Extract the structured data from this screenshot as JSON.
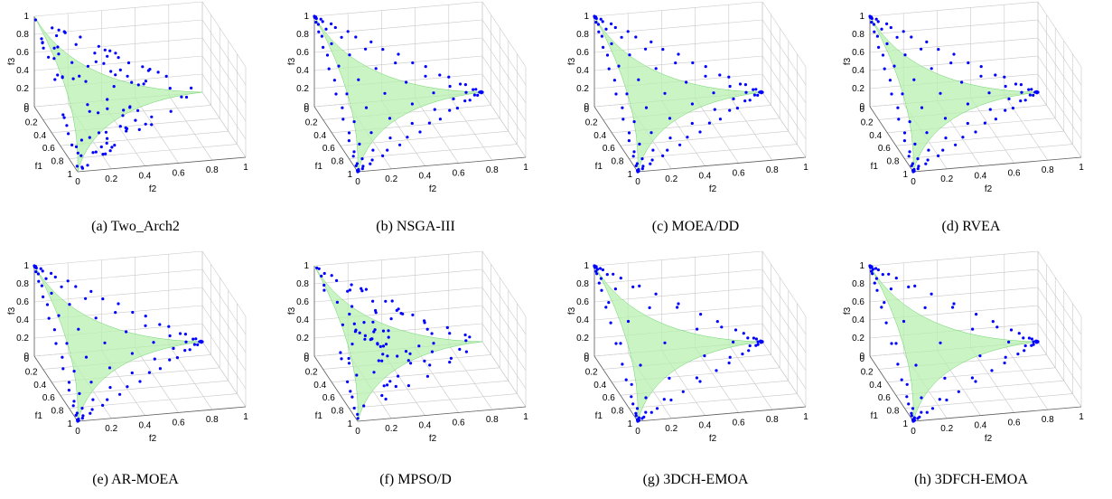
{
  "figure": {
    "panels": [
      {
        "caption": "(a)  Two_Arch2"
      },
      {
        "caption": "(b)  NSGA-III"
      },
      {
        "caption": "(c)  MOEA/DD"
      },
      {
        "caption": "(d)  RVEA"
      },
      {
        "caption": "(e)  AR-MOEA"
      },
      {
        "caption": "(f)  MPSO/D"
      },
      {
        "caption": "(g)  3DCH-EMOA"
      },
      {
        "caption": "(h)  3DFCH-EMOA"
      }
    ],
    "colors": {
      "points": "#0000ff",
      "front": "#b8f0b0",
      "front_edge": "#6ad36a",
      "grid": "#c8c8c8",
      "axis": "#606060"
    }
  },
  "chart_data": [
    {
      "type": "scatter",
      "title": "(a)  Two_Arch2",
      "xlabel": "f1",
      "ylabel": "f2",
      "zlabel": "f3",
      "xlim": [
        0,
        1
      ],
      "ylim": [
        0,
        1
      ],
      "zlim": [
        0,
        1
      ],
      "ticks": {
        "x": [
          "0",
          "0.2",
          "0.4",
          "0.6",
          "0.8",
          "1"
        ],
        "y": [
          "0",
          "0.2",
          "0.4",
          "0.6",
          "0.8",
          "1"
        ],
        "z": [
          "0",
          "0.2",
          "0.4",
          "0.6",
          "0.8",
          "1"
        ]
      },
      "grid": true,
      "points_count": 100,
      "front": "concave (inverted simplex)",
      "distribution": "random-like, denser toward corners"
    },
    {
      "type": "scatter",
      "title": "(b)  NSGA-III",
      "xlabel": "f1",
      "ylabel": "f2",
      "zlabel": "f3",
      "xlim": [
        0,
        1
      ],
      "ylim": [
        0,
        1
      ],
      "zlim": [
        0,
        1
      ],
      "ticks": {
        "x": [
          "0",
          "0.2",
          "0.4",
          "0.6",
          "0.8",
          "1"
        ],
        "y": [
          "0",
          "0.2",
          "0.4",
          "0.6",
          "0.8",
          "1"
        ],
        "z": [
          "0",
          "0.2",
          "0.4",
          "0.6",
          "0.8",
          "1"
        ]
      },
      "grid": true,
      "points_count": 91,
      "front": "concave (inverted simplex)",
      "distribution": "uniform lattice"
    },
    {
      "type": "scatter",
      "title": "(c)  MOEA/DD",
      "xlabel": "f1",
      "ylabel": "f2",
      "zlabel": "f3",
      "xlim": [
        0,
        1
      ],
      "ylim": [
        0,
        1
      ],
      "zlim": [
        0,
        1
      ],
      "ticks": {
        "x": [
          "0",
          "0.2",
          "0.4",
          "0.6",
          "0.8",
          "1"
        ],
        "y": [
          "0",
          "0.2",
          "0.4",
          "0.6",
          "0.8",
          "1"
        ],
        "z": [
          "0",
          "0.2",
          "0.4",
          "0.6",
          "0.8",
          "1"
        ]
      },
      "grid": true,
      "points_count": 91,
      "front": "concave (inverted simplex)",
      "distribution": "uniform lattice"
    },
    {
      "type": "scatter",
      "title": "(d)  RVEA",
      "xlabel": "f1",
      "ylabel": "f2",
      "zlabel": "f3",
      "xlim": [
        0,
        1
      ],
      "ylim": [
        0,
        1
      ],
      "zlim": [
        0,
        1
      ],
      "ticks": {
        "x": [
          "0",
          "0.2",
          "0.4",
          "0.6",
          "0.8",
          "1"
        ],
        "y": [
          "0",
          "0.2",
          "0.4",
          "0.6",
          "0.8",
          "1"
        ],
        "z": [
          "0",
          "0.2",
          "0.4",
          "0.6",
          "0.8",
          "1"
        ]
      },
      "grid": true,
      "points_count": 91,
      "front": "concave (inverted simplex)",
      "distribution": "uniform lattice"
    },
    {
      "type": "scatter",
      "title": "(e)  AR-MOEA",
      "xlabel": "f1",
      "ylabel": "f2",
      "zlabel": "f3",
      "xlim": [
        0,
        1
      ],
      "ylim": [
        0,
        1
      ],
      "zlim": [
        0,
        1
      ],
      "ticks": {
        "x": [
          "0",
          "0.2",
          "0.4",
          "0.6",
          "0.8",
          "1"
        ],
        "y": [
          "0",
          "0.2",
          "0.4",
          "0.6",
          "0.8",
          "1"
        ],
        "z": [
          "0",
          "0.2",
          "0.4",
          "0.6",
          "0.8",
          "1"
        ]
      },
      "grid": true,
      "points_count": 91,
      "front": "concave (inverted simplex)",
      "distribution": "uniform lattice"
    },
    {
      "type": "scatter",
      "title": "(f)  MPSO/D",
      "xlabel": "f1",
      "ylabel": "f2",
      "zlabel": "f3",
      "xlim": [
        0,
        1
      ],
      "ylim": [
        0,
        1
      ],
      "zlim": [
        0,
        1
      ],
      "ticks": {
        "x": [
          "0",
          "0.2",
          "0.4",
          "0.6",
          "0.8",
          "1"
        ],
        "y": [
          "0",
          "0.2",
          "0.4",
          "0.6",
          "0.8",
          "1"
        ],
        "z": [
          "0",
          "0.2",
          "0.4",
          "0.6",
          "0.8",
          "1"
        ]
      },
      "grid": true,
      "points_count": 100,
      "front": "concave (inverted simplex)",
      "distribution": "dense in center"
    },
    {
      "type": "scatter",
      "title": "(g)  3DCH-EMOA",
      "xlabel": "f1",
      "ylabel": "f2",
      "zlabel": "f3",
      "xlim": [
        0,
        1
      ],
      "ylim": [
        0,
        1
      ],
      "zlim": [
        0,
        1
      ],
      "ticks": {
        "x": [
          "0",
          "0.2",
          "0.4",
          "0.6",
          "0.8",
          "1"
        ],
        "y": [
          "0",
          "0.2",
          "0.4",
          "0.6",
          "0.8",
          "1"
        ],
        "z": [
          "0",
          "0.2",
          "0.4",
          "0.6",
          "0.8",
          "1"
        ]
      },
      "grid": true,
      "points_count": 91,
      "front": "concave (inverted simplex)",
      "distribution": "concentrated along edges"
    },
    {
      "type": "scatter",
      "title": "(h)  3DFCH-EMOA",
      "xlabel": "f1",
      "ylabel": "f2",
      "zlabel": "f3",
      "xlim": [
        0,
        1
      ],
      "ylim": [
        0,
        1
      ],
      "zlim": [
        0,
        1
      ],
      "ticks": {
        "x": [
          "0",
          "0.2",
          "0.4",
          "0.6",
          "0.8",
          "1"
        ],
        "y": [
          "0",
          "0.2",
          "0.4",
          "0.6",
          "0.8",
          "1"
        ],
        "z": [
          "0",
          "0.2",
          "0.4",
          "0.6",
          "0.8",
          "1"
        ]
      },
      "grid": true,
      "points_count": 91,
      "front": "concave (inverted simplex)",
      "distribution": "concentrated along edges"
    }
  ]
}
